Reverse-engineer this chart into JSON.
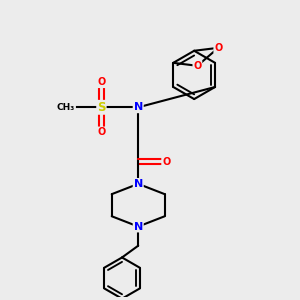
{
  "bg_color": "#ececec",
  "atom_colors": {
    "C": "#000000",
    "N": "#0000ff",
    "O": "#ff0000",
    "S": "#cccc00"
  },
  "bond_color": "#000000",
  "bond_width": 1.5
}
